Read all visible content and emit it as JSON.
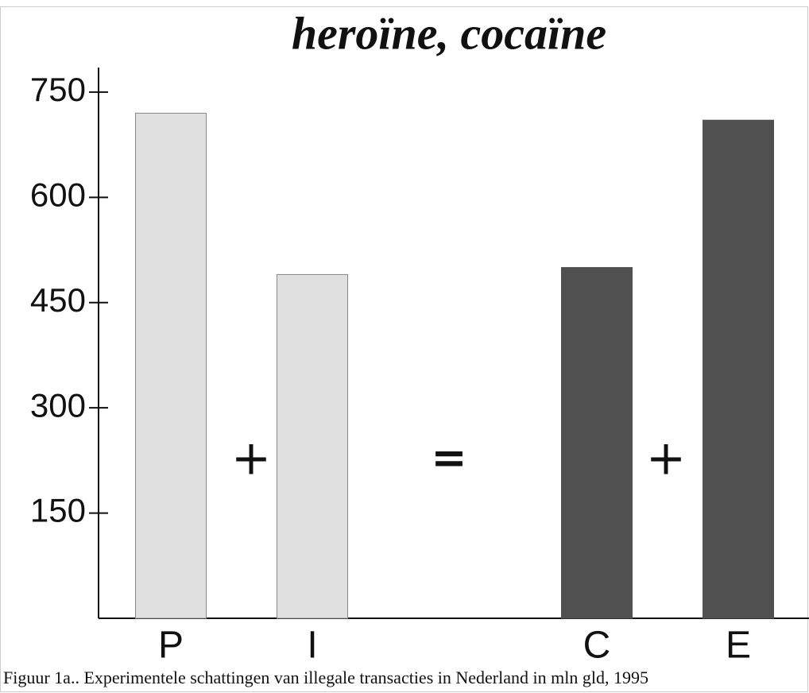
{
  "chart_data": {
    "type": "bar",
    "title": "heroïne, cocaïne",
    "categories": [
      "P",
      "I",
      "C",
      "E"
    ],
    "values": [
      720,
      490,
      500,
      710
    ],
    "colors": [
      "#e0e0e0",
      "#e0e0e0",
      "#505050",
      "#505050"
    ],
    "ylim": [
      0,
      785
    ],
    "yticks": [
      150,
      300,
      450,
      600,
      750
    ],
    "annotations": [
      "+",
      "=",
      "+"
    ],
    "caption": "Figuur 1a.. Experimentele schattingen van illegale transacties in Nederland in mln gld, 1995"
  }
}
